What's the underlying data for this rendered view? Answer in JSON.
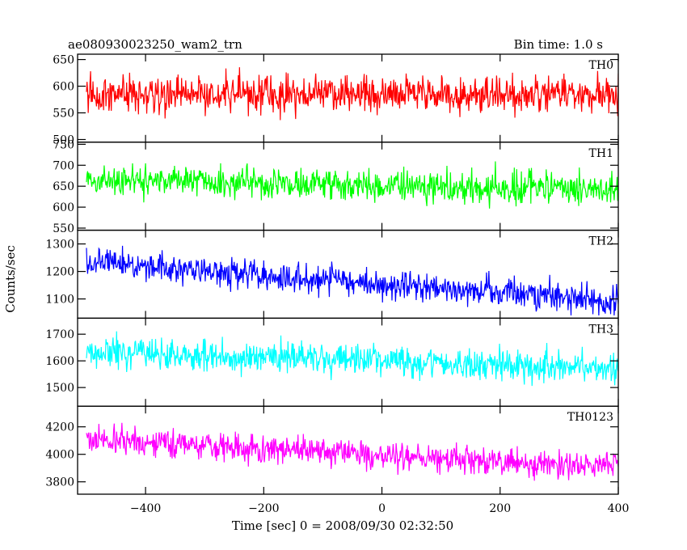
{
  "chart_data": {
    "type": "line",
    "title": "ae080930023250_wam2_trn",
    "bin_time_label": "Bin time: 1.0 s",
    "xlabel": "Time [sec] 0 = 2008/09/30 02:32:50",
    "ylabel": "Counts/sec",
    "xlim": [
      -515,
      400
    ],
    "xticks": [
      -400,
      -200,
      0,
      200,
      400
    ],
    "x_start": -500,
    "x_end": 400,
    "bin_time": 1.0,
    "panels": [
      {
        "name": "TH0",
        "color": "#ff0000",
        "ylim": [
          495,
          660
        ],
        "yticks": [
          500,
          550,
          600,
          650
        ],
        "mean_start": 585,
        "mean_end": 585,
        "noise": 24,
        "clip": [
          510,
          660
        ]
      },
      {
        "name": "TH1",
        "color": "#00ff00",
        "ylim": [
          545,
          755
        ],
        "yticks": [
          550,
          600,
          650,
          700,
          750
        ],
        "mean_start": 665,
        "mean_end": 640,
        "noise": 26,
        "clip": [
          560,
          748
        ]
      },
      {
        "name": "TH2",
        "color": "#0000ff",
        "ylim": [
          1030,
          1350
        ],
        "yticks": [
          1100,
          1200,
          1300
        ],
        "mean_start": 1235,
        "mean_end": 1090,
        "noise": 38,
        "clip": [
          1040,
          1345
        ]
      },
      {
        "name": "TH3",
        "color": "#00ffff",
        "ylim": [
          1430,
          1760
        ],
        "yticks": [
          1500,
          1600,
          1700
        ],
        "mean_start": 1635,
        "mean_end": 1570,
        "noise": 42,
        "clip": [
          1440,
          1755
        ]
      },
      {
        "name": "TH0123",
        "color": "#ff00ff",
        "ylim": [
          3710,
          4350
        ],
        "yticks": [
          3800,
          4000,
          4200
        ],
        "mean_start": 4110,
        "mean_end": 3900,
        "noise": 75,
        "clip": [
          3720,
          4340
        ]
      }
    ]
  }
}
